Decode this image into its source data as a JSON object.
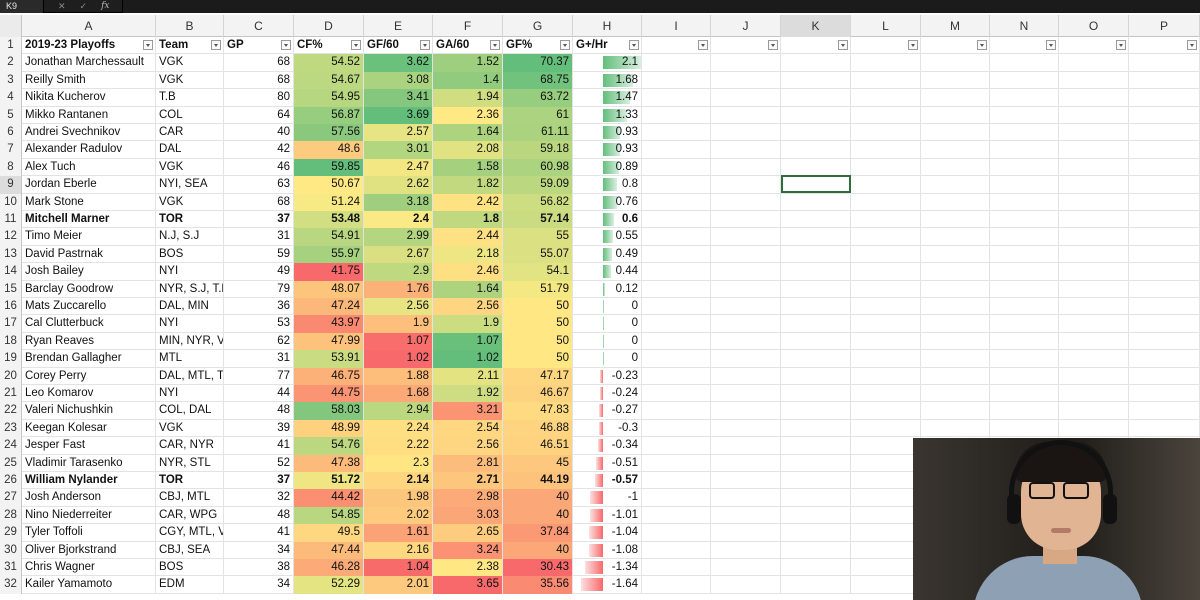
{
  "formula_bar": {
    "name_box": "K9",
    "fx_label": "fx",
    "formula": ""
  },
  "columns": [
    "A",
    "B",
    "C",
    "D",
    "E",
    "F",
    "G",
    "H",
    "I",
    "J",
    "K",
    "L",
    "M",
    "N",
    "O",
    "P"
  ],
  "selected_column": "K",
  "selected_row": 9,
  "header_row": {
    "row_number": "1",
    "labels": [
      "2019-23 Playoffs",
      "Team",
      "GP",
      "CF%",
      "GF/60",
      "GA/60",
      "GF%",
      "G+/Hr"
    ]
  },
  "rows": [
    {
      "n": "2",
      "player": "Jonathan Marchessault",
      "team": "VGK",
      "gp": "68",
      "cf": "54.52",
      "gf60": "3.62",
      "ga60": "1.52",
      "gfp": "70.37",
      "gph": "2.1",
      "bold": false
    },
    {
      "n": "3",
      "player": "Reilly Smith",
      "team": "VGK",
      "gp": "68",
      "cf": "54.67",
      "gf60": "3.08",
      "ga60": "1.4",
      "gfp": "68.75",
      "gph": "1.68",
      "bold": false
    },
    {
      "n": "4",
      "player": "Nikita Kucherov",
      "team": "T.B",
      "gp": "80",
      "cf": "54.95",
      "gf60": "3.41",
      "ga60": "1.94",
      "gfp": "63.72",
      "gph": "1.47",
      "bold": false
    },
    {
      "n": "5",
      "player": "Mikko Rantanen",
      "team": "COL",
      "gp": "64",
      "cf": "56.87",
      "gf60": "3.69",
      "ga60": "2.36",
      "gfp": "61",
      "gph": "1.33",
      "bold": false
    },
    {
      "n": "6",
      "player": "Andrei Svechnikov",
      "team": "CAR",
      "gp": "40",
      "cf": "57.56",
      "gf60": "2.57",
      "ga60": "1.64",
      "gfp": "61.11",
      "gph": "0.93",
      "bold": false
    },
    {
      "n": "7",
      "player": "Alexander Radulov",
      "team": "DAL",
      "gp": "42",
      "cf": "48.6",
      "gf60": "3.01",
      "ga60": "2.08",
      "gfp": "59.18",
      "gph": "0.93",
      "bold": false
    },
    {
      "n": "8",
      "player": "Alex Tuch",
      "team": "VGK",
      "gp": "46",
      "cf": "59.85",
      "gf60": "2.47",
      "ga60": "1.58",
      "gfp": "60.98",
      "gph": "0.89",
      "bold": false
    },
    {
      "n": "9",
      "player": "Jordan Eberle",
      "team": "NYI, SEA",
      "gp": "63",
      "cf": "50.67",
      "gf60": "2.62",
      "ga60": "1.82",
      "gfp": "59.09",
      "gph": "0.8",
      "bold": false
    },
    {
      "n": "10",
      "player": "Mark Stone",
      "team": "VGK",
      "gp": "68",
      "cf": "51.24",
      "gf60": "3.18",
      "ga60": "2.42",
      "gfp": "56.82",
      "gph": "0.76",
      "bold": false
    },
    {
      "n": "11",
      "player": "Mitchell Marner",
      "team": "TOR",
      "gp": "37",
      "cf": "53.48",
      "gf60": "2.4",
      "ga60": "1.8",
      "gfp": "57.14",
      "gph": "0.6",
      "bold": true
    },
    {
      "n": "12",
      "player": "Timo Meier",
      "team": "N.J, S.J",
      "gp": "31",
      "cf": "54.91",
      "gf60": "2.99",
      "ga60": "2.44",
      "gfp": "55",
      "gph": "0.55",
      "bold": false
    },
    {
      "n": "13",
      "player": "David Pastrnak",
      "team": "BOS",
      "gp": "59",
      "cf": "55.97",
      "gf60": "2.67",
      "ga60": "2.18",
      "gfp": "55.07",
      "gph": "0.49",
      "bold": false
    },
    {
      "n": "14",
      "player": "Josh Bailey",
      "team": "NYI",
      "gp": "49",
      "cf": "41.75",
      "gf60": "2.9",
      "ga60": "2.46",
      "gfp": "54.1",
      "gph": "0.44",
      "bold": false
    },
    {
      "n": "15",
      "player": "Barclay Goodrow",
      "team": "NYR, S.J, T.B",
      "gp": "79",
      "cf": "48.07",
      "gf60": "1.76",
      "ga60": "1.64",
      "gfp": "51.79",
      "gph": "0.12",
      "bold": false
    },
    {
      "n": "16",
      "player": "Mats Zuccarello",
      "team": "DAL, MIN",
      "gp": "36",
      "cf": "47.24",
      "gf60": "2.56",
      "ga60": "2.56",
      "gfp": "50",
      "gph": "0",
      "bold": false
    },
    {
      "n": "17",
      "player": "Cal Clutterbuck",
      "team": "NYI",
      "gp": "53",
      "cf": "43.97",
      "gf60": "1.9",
      "ga60": "1.9",
      "gfp": "50",
      "gph": "0",
      "bold": false
    },
    {
      "n": "18",
      "player": "Ryan Reaves",
      "team": "MIN, NYR, VG",
      "gp": "62",
      "cf": "47.99",
      "gf60": "1.07",
      "ga60": "1.07",
      "gfp": "50",
      "gph": "0",
      "bold": false
    },
    {
      "n": "19",
      "player": "Brendan Gallagher",
      "team": "MTL",
      "gp": "31",
      "cf": "53.91",
      "gf60": "1.02",
      "ga60": "1.02",
      "gfp": "50",
      "gph": "0",
      "bold": false
    },
    {
      "n": "20",
      "player": "Corey Perry",
      "team": "DAL, MTL, T.E",
      "gp": "77",
      "cf": "46.75",
      "gf60": "1.88",
      "ga60": "2.11",
      "gfp": "47.17",
      "gph": "-0.23",
      "bold": false
    },
    {
      "n": "21",
      "player": "Leo Komarov",
      "team": "NYI",
      "gp": "44",
      "cf": "44.75",
      "gf60": "1.68",
      "ga60": "1.92",
      "gfp": "46.67",
      "gph": "-0.24",
      "bold": false
    },
    {
      "n": "22",
      "player": "Valeri Nichushkin",
      "team": "COL, DAL",
      "gp": "48",
      "cf": "58.03",
      "gf60": "2.94",
      "ga60": "3.21",
      "gfp": "47.83",
      "gph": "-0.27",
      "bold": false
    },
    {
      "n": "23",
      "player": "Keegan Kolesar",
      "team": "VGK",
      "gp": "39",
      "cf": "48.99",
      "gf60": "2.24",
      "ga60": "2.54",
      "gfp": "46.88",
      "gph": "-0.3",
      "bold": false
    },
    {
      "n": "24",
      "player": "Jesper Fast",
      "team": "CAR, NYR",
      "gp": "41",
      "cf": "54.76",
      "gf60": "2.22",
      "ga60": "2.56",
      "gfp": "46.51",
      "gph": "-0.34",
      "bold": false
    },
    {
      "n": "25",
      "player": "Vladimir Tarasenko",
      "team": "NYR, STL",
      "gp": "52",
      "cf": "47.38",
      "gf60": "2.3",
      "ga60": "2.81",
      "gfp": "45",
      "gph": "-0.51",
      "bold": false
    },
    {
      "n": "26",
      "player": "William Nylander",
      "team": "TOR",
      "gp": "37",
      "cf": "51.72",
      "gf60": "2.14",
      "ga60": "2.71",
      "gfp": "44.19",
      "gph": "-0.57",
      "bold": true
    },
    {
      "n": "27",
      "player": "Josh Anderson",
      "team": "CBJ, MTL",
      "gp": "32",
      "cf": "44.42",
      "gf60": "1.98",
      "ga60": "2.98",
      "gfp": "40",
      "gph": "-1",
      "bold": false
    },
    {
      "n": "28",
      "player": "Nino Niederreiter",
      "team": "CAR, WPG",
      "gp": "48",
      "cf": "54.85",
      "gf60": "2.02",
      "ga60": "3.03",
      "gfp": "40",
      "gph": "-1.01",
      "bold": false
    },
    {
      "n": "29",
      "player": "Tyler Toffoli",
      "team": "CGY, MTL, VA",
      "gp": "41",
      "cf": "49.5",
      "gf60": "1.61",
      "ga60": "2.65",
      "gfp": "37.84",
      "gph": "-1.04",
      "bold": false
    },
    {
      "n": "30",
      "player": "Oliver Bjorkstrand",
      "team": "CBJ, SEA",
      "gp": "34",
      "cf": "47.44",
      "gf60": "2.16",
      "ga60": "3.24",
      "gfp": "40",
      "gph": "-1.08",
      "bold": false
    },
    {
      "n": "31",
      "player": "Chris Wagner",
      "team": "BOS",
      "gp": "38",
      "cf": "46.28",
      "gf60": "1.04",
      "ga60": "2.38",
      "gfp": "30.43",
      "gph": "-1.34",
      "bold": false
    },
    {
      "n": "32",
      "player": "Kailer Yamamoto",
      "team": "EDM",
      "gp": "34",
      "cf": "52.29",
      "gf60": "2.01",
      "ga60": "3.65",
      "gfp": "35.56",
      "gph": "-1.64",
      "bold": false
    }
  ],
  "scales": {
    "cf": {
      "min": 41.75,
      "max": 59.85
    },
    "gf60": {
      "min": 1.02,
      "max": 3.69
    },
    "ga60": {
      "min": 1.02,
      "max": 3.65,
      "reverse": true
    },
    "gfp": {
      "min": 30.43,
      "max": 70.37
    }
  },
  "colors": {
    "scale_low": "#f8696b",
    "scale_mid": "#ffeb84",
    "scale_high": "#63be7b",
    "bar_positive": "#63be7b",
    "bar_negative": "#f8696b",
    "selection": "#2f6b3d"
  },
  "webcam": {
    "description_icon": "presenter-webcam-icon"
  }
}
